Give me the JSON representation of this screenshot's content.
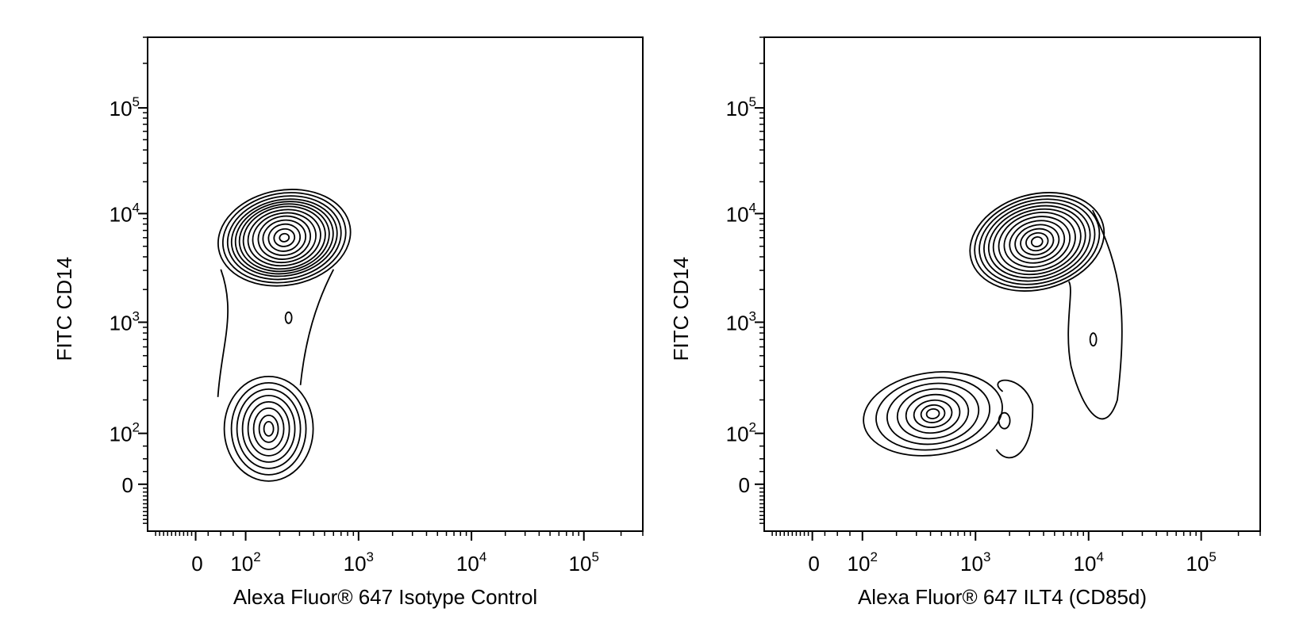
{
  "chart_data": [
    {
      "type": "contour",
      "xlabel": "Alexa Fluor® 647  Isotype Control",
      "ylabel": "FITC  CD14",
      "x_scale": "biexponential",
      "y_scale": "biexponential",
      "xlim": [
        -300,
        300000
      ],
      "ylim": [
        -300,
        300000
      ],
      "x_ticks": [
        {
          "value": 0,
          "base": "0",
          "exp": ""
        },
        {
          "value": 100,
          "base": "10",
          "exp": "2"
        },
        {
          "value": 1000,
          "base": "10",
          "exp": "3"
        },
        {
          "value": 10000,
          "base": "10",
          "exp": "4"
        },
        {
          "value": 100000,
          "base": "10",
          "exp": "5"
        }
      ],
      "y_ticks": [
        {
          "value": 0,
          "base": "0",
          "exp": ""
        },
        {
          "value": 100,
          "base": "10",
          "exp": "2"
        },
        {
          "value": 1000,
          "base": "10",
          "exp": "3"
        },
        {
          "value": 10000,
          "base": "10",
          "exp": "4"
        },
        {
          "value": 100000,
          "base": "10",
          "exp": "5"
        }
      ],
      "populations": [
        {
          "x": 220,
          "y": 6000,
          "levels": 15
        },
        {
          "x": 160,
          "y": 110,
          "levels": 8
        },
        {
          "x": 240,
          "y": 1100,
          "levels": 1
        }
      ]
    },
    {
      "type": "contour",
      "xlabel": "Alexa Fluor® 647  ILT4 (CD85d)",
      "ylabel": "FITC  CD14",
      "x_scale": "biexponential",
      "y_scale": "biexponential",
      "xlim": [
        -300,
        300000
      ],
      "ylim": [
        -300,
        300000
      ],
      "x_ticks": [
        {
          "value": 0,
          "base": "0",
          "exp": ""
        },
        {
          "value": 100,
          "base": "10",
          "exp": "2"
        },
        {
          "value": 1000,
          "base": "10",
          "exp": "3"
        },
        {
          "value": 10000,
          "base": "10",
          "exp": "4"
        },
        {
          "value": 100000,
          "base": "10",
          "exp": "5"
        }
      ],
      "y_ticks": [
        {
          "value": 0,
          "base": "0",
          "exp": ""
        },
        {
          "value": 100,
          "base": "10",
          "exp": "2"
        },
        {
          "value": 1000,
          "base": "10",
          "exp": "3"
        },
        {
          "value": 10000,
          "base": "10",
          "exp": "4"
        },
        {
          "value": 100000,
          "base": "10",
          "exp": "5"
        }
      ],
      "populations": [
        {
          "x": 3500,
          "y": 5500,
          "levels": 15
        },
        {
          "x": 420,
          "y": 150,
          "levels": 8
        },
        {
          "x": 1800,
          "y": 130,
          "levels": 1
        },
        {
          "x": 11000,
          "y": 700,
          "levels": 1
        }
      ]
    }
  ]
}
